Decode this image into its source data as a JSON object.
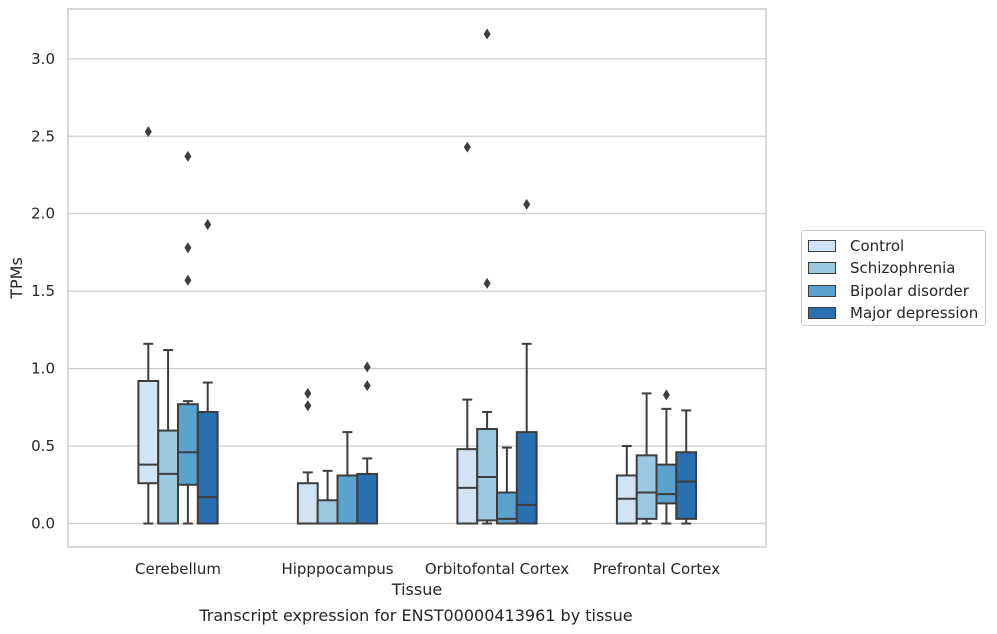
{
  "caption": "Transcript expression for ENST00000413961 by tissue",
  "chart_data": {
    "type": "boxplot",
    "xlabel": "Tissue",
    "ylabel": "TPMs",
    "ylim": [
      -0.15,
      3.33
    ],
    "yticks": [
      "0.0",
      "0.5",
      "1.0",
      "1.5",
      "2.0",
      "2.5",
      "3.0"
    ],
    "grid": "horizontal",
    "legend_position": "right",
    "categories": [
      "Cerebellum",
      "Hipppocampus",
      "Orbitofontal Cortex",
      "Prefrontal Cortex"
    ],
    "series": [
      {
        "name": "Control",
        "color": "#d2e3f3",
        "boxes": [
          {
            "whislo": 0.0,
            "q1": 0.26,
            "median": 0.38,
            "q3": 0.92,
            "whishi": 1.16,
            "fliers": [
              2.53
            ]
          },
          {
            "whislo": 0.0,
            "q1": 0.0,
            "median": 0.0,
            "q3": 0.26,
            "whishi": 0.33,
            "fliers": [
              0.76,
              0.84
            ]
          },
          {
            "whislo": 0.0,
            "q1": 0.0,
            "median": 0.23,
            "q3": 0.48,
            "whishi": 0.8,
            "fliers": [
              2.43
            ]
          },
          {
            "whislo": 0.0,
            "q1": 0.0,
            "median": 0.16,
            "q3": 0.31,
            "whishi": 0.5,
            "fliers": []
          }
        ]
      },
      {
        "name": "Schizophrenia",
        "color": "#9ac8e0",
        "boxes": [
          {
            "whislo": 0.0,
            "q1": 0.0,
            "median": 0.32,
            "q3": 0.6,
            "whishi": 1.12,
            "fliers": []
          },
          {
            "whislo": 0.0,
            "q1": 0.0,
            "median": 0.0,
            "q3": 0.15,
            "whishi": 0.34,
            "fliers": []
          },
          {
            "whislo": 0.0,
            "q1": 0.02,
            "median": 0.3,
            "q3": 0.61,
            "whishi": 0.72,
            "fliers": [
              1.55,
              3.16
            ]
          },
          {
            "whislo": 0.0,
            "q1": 0.03,
            "median": 0.2,
            "q3": 0.44,
            "whishi": 0.84,
            "fliers": []
          }
        ]
      },
      {
        "name": "Bipolar disorder",
        "color": "#5ba3cf",
        "boxes": [
          {
            "whislo": 0.0,
            "q1": 0.25,
            "median": 0.46,
            "q3": 0.77,
            "whishi": 0.79,
            "fliers": [
              1.57,
              1.78,
              2.37
            ]
          },
          {
            "whislo": 0.0,
            "q1": 0.0,
            "median": 0.0,
            "q3": 0.31,
            "whishi": 0.59,
            "fliers": []
          },
          {
            "whislo": 0.0,
            "q1": 0.0,
            "median": 0.03,
            "q3": 0.2,
            "whishi": 0.49,
            "fliers": []
          },
          {
            "whislo": 0.0,
            "q1": 0.13,
            "median": 0.19,
            "q3": 0.38,
            "whishi": 0.74,
            "fliers": [
              0.83
            ]
          }
        ]
      },
      {
        "name": "Major depression",
        "color": "#2a6fb0",
        "boxes": [
          {
            "whislo": 0.0,
            "q1": 0.0,
            "median": 0.17,
            "q3": 0.72,
            "whishi": 0.91,
            "fliers": [
              1.93
            ]
          },
          {
            "whislo": 0.0,
            "q1": 0.0,
            "median": 0.0,
            "q3": 0.32,
            "whishi": 0.42,
            "fliers": [
              0.89,
              1.01
            ]
          },
          {
            "whislo": 0.0,
            "q1": 0.0,
            "median": 0.12,
            "q3": 0.59,
            "whishi": 1.16,
            "fliers": [
              2.06
            ]
          },
          {
            "whislo": 0.0,
            "q1": 0.03,
            "median": 0.27,
            "q3": 0.46,
            "whishi": 0.73,
            "fliers": []
          }
        ]
      }
    ]
  }
}
